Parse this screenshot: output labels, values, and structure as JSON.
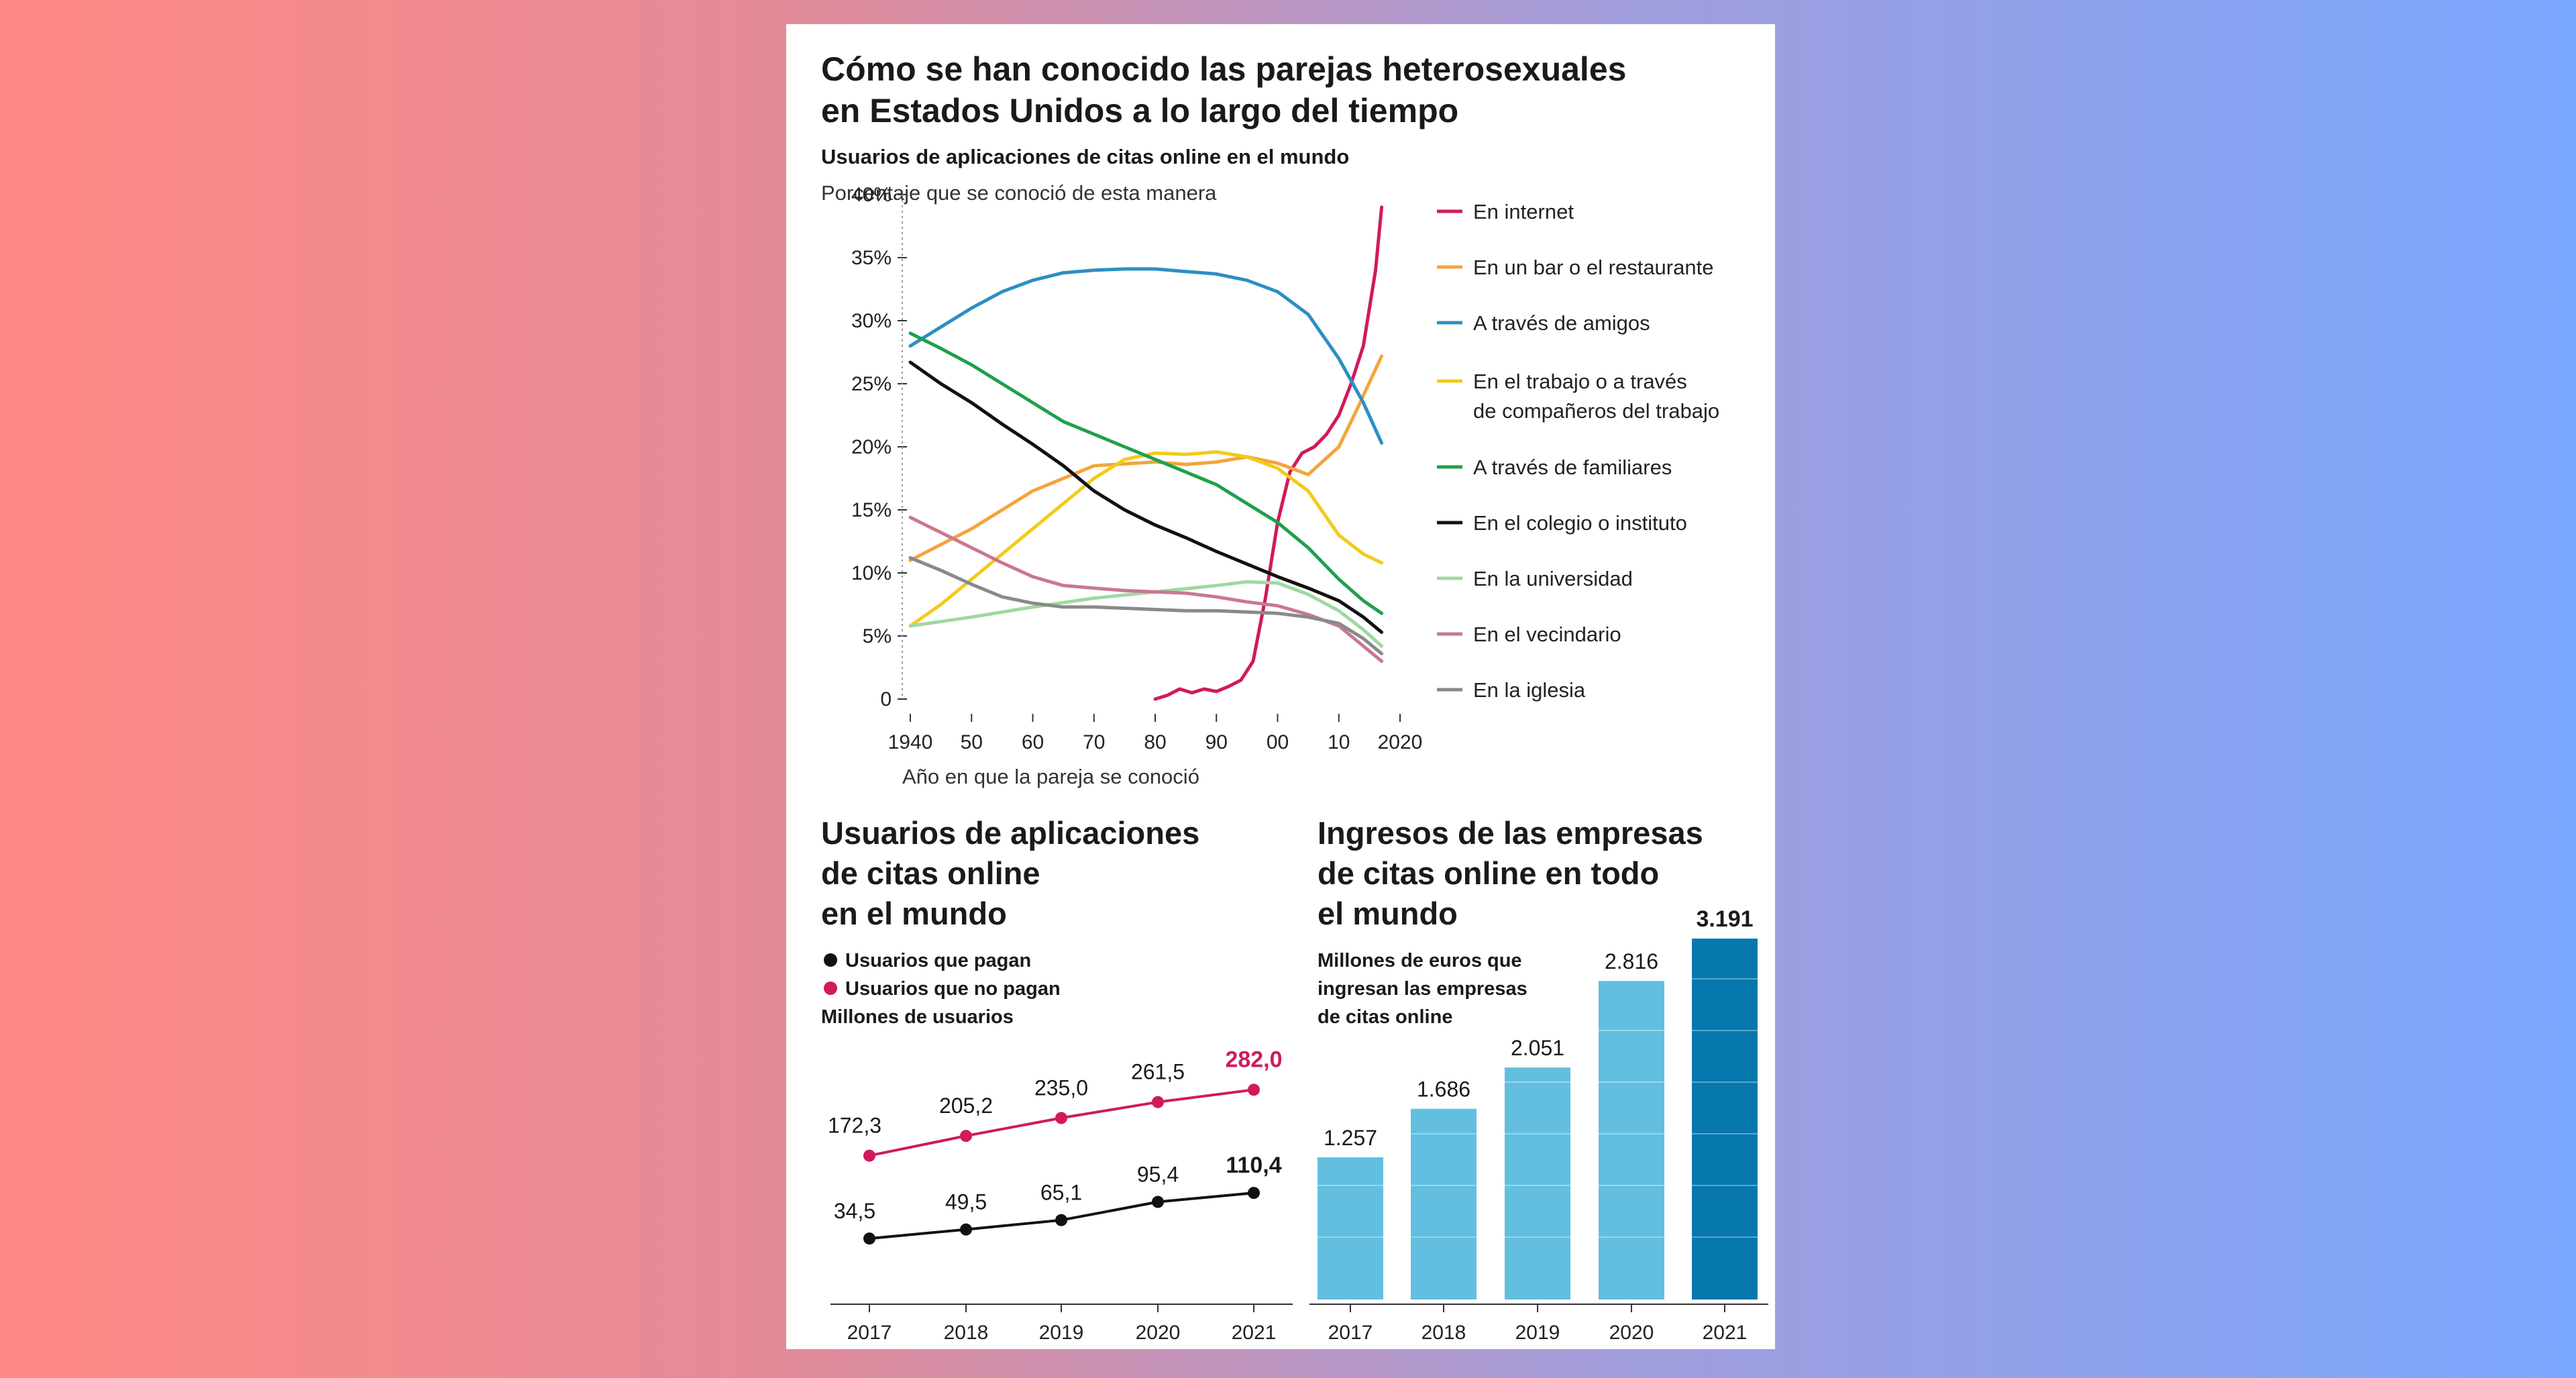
{
  "header": {
    "title_line1": "Cómo se han conocido las parejas heterosexuales",
    "title_line2": "en Estados Unidos a lo largo del tiempo",
    "subtitle_bold": "Usuarios de aplicaciones de citas online en el mundo",
    "subtitle_reg": "Porcentaje que se conoció de esta manera"
  },
  "chart_data": [
    {
      "type": "line",
      "ylabel": "Porcentaje que se conoció de esta manera",
      "xlabel": "Año en que la pareja se conoció",
      "xlim": [
        1940,
        2017
      ],
      "ylim": [
        0,
        40
      ],
      "y_ticks": [
        {
          "v": 40,
          "label": "40%"
        },
        {
          "v": 35,
          "label": "35%"
        },
        {
          "v": 30,
          "label": "30%"
        },
        {
          "v": 25,
          "label": "25%"
        },
        {
          "v": 20,
          "label": "20%"
        },
        {
          "v": 15,
          "label": "15%"
        },
        {
          "v": 10,
          "label": "10%"
        },
        {
          "v": 5,
          "label": "5%"
        },
        {
          "v": 0,
          "label": "0"
        }
      ],
      "x_ticks": [
        {
          "v": 1940,
          "label": "1940"
        },
        {
          "v": 1950,
          "label": "50"
        },
        {
          "v": 1960,
          "label": "60"
        },
        {
          "v": 1970,
          "label": "70"
        },
        {
          "v": 1980,
          "label": "80"
        },
        {
          "v": 1990,
          "label": "90"
        },
        {
          "v": 2000,
          "label": "00"
        },
        {
          "v": 2010,
          "label": "10"
        },
        {
          "v": 2020,
          "label": "2020"
        }
      ],
      "series": [
        {
          "name": "En internet",
          "color": "#d01a5e",
          "points": [
            [
              1980,
              0
            ],
            [
              1982,
              0.3
            ],
            [
              1984,
              0.8
            ],
            [
              1986,
              0.5
            ],
            [
              1988,
              0.8
            ],
            [
              1990,
              0.6
            ],
            [
              1992,
              1.0
            ],
            [
              1994,
              1.5
            ],
            [
              1996,
              3
            ],
            [
              1998,
              8
            ],
            [
              2000,
              14
            ],
            [
              2002,
              18
            ],
            [
              2004,
              19.5
            ],
            [
              2006,
              20
            ],
            [
              2008,
              21
            ],
            [
              2010,
              22.5
            ],
            [
              2012,
              25
            ],
            [
              2014,
              28
            ],
            [
              2016,
              34
            ],
            [
              2017,
              39
            ]
          ]
        },
        {
          "name": "En un bar o el restaurante",
          "color": "#f4a43c",
          "points": [
            [
              1940,
              11
            ],
            [
              1950,
              13.5
            ],
            [
              1960,
              16.5
            ],
            [
              1970,
              18.5
            ],
            [
              1980,
              18.8
            ],
            [
              1985,
              18.6
            ],
            [
              1990,
              18.8
            ],
            [
              1995,
              19.2
            ],
            [
              2000,
              18.7
            ],
            [
              2005,
              17.8
            ],
            [
              2010,
              20
            ],
            [
              2013,
              23
            ],
            [
              2017,
              27.2
            ]
          ]
        },
        {
          "name": "A través de amigos",
          "color": "#2b8fc3",
          "points": [
            [
              1940,
              28
            ],
            [
              1945,
              29.5
            ],
            [
              1950,
              31
            ],
            [
              1955,
              32.3
            ],
            [
              1960,
              33.2
            ],
            [
              1965,
              33.8
            ],
            [
              1970,
              34
            ],
            [
              1975,
              34.1
            ],
            [
              1980,
              34.1
            ],
            [
              1985,
              33.9
            ],
            [
              1990,
              33.7
            ],
            [
              1995,
              33.2
            ],
            [
              2000,
              32.3
            ],
            [
              2005,
              30.5
            ],
            [
              2010,
              27
            ],
            [
              2014,
              23.5
            ],
            [
              2017,
              20.3
            ]
          ]
        },
        {
          "name": "En el trabajo o a través\nde compañeros del trabajo",
          "color": "#f2cb1a",
          "points": [
            [
              1940,
              5.8
            ],
            [
              1945,
              7.5
            ],
            [
              1950,
              9.5
            ],
            [
              1955,
              11.5
            ],
            [
              1960,
              13.5
            ],
            [
              1965,
              15.5
            ],
            [
              1970,
              17.5
            ],
            [
              1975,
              19
            ],
            [
              1980,
              19.5
            ],
            [
              1985,
              19.4
            ],
            [
              1990,
              19.6
            ],
            [
              1995,
              19.2
            ],
            [
              2000,
              18.3
            ],
            [
              2005,
              16.5
            ],
            [
              2010,
              13
            ],
            [
              2014,
              11.5
            ],
            [
              2017,
              10.8
            ]
          ]
        },
        {
          "name": "A través de familiares",
          "color": "#20a04b",
          "points": [
            [
              1940,
              29
            ],
            [
              1945,
              27.8
            ],
            [
              1950,
              26.5
            ],
            [
              1955,
              25
            ],
            [
              1960,
              23.5
            ],
            [
              1965,
              22
            ],
            [
              1970,
              21
            ],
            [
              1975,
              20
            ],
            [
              1980,
              19
            ],
            [
              1985,
              18
            ],
            [
              1990,
              17
            ],
            [
              1995,
              15.5
            ],
            [
              2000,
              14
            ],
            [
              2005,
              12
            ],
            [
              2010,
              9.5
            ],
            [
              2014,
              7.8
            ],
            [
              2017,
              6.8
            ]
          ]
        },
        {
          "name": "En el colegio o instituto",
          "color": "#111111",
          "points": [
            [
              1940,
              26.7
            ],
            [
              1945,
              25
            ],
            [
              1950,
              23.5
            ],
            [
              1955,
              21.8
            ],
            [
              1960,
              20.2
            ],
            [
              1965,
              18.5
            ],
            [
              1970,
              16.5
            ],
            [
              1975,
              15
            ],
            [
              1980,
              13.8
            ],
            [
              1985,
              12.8
            ],
            [
              1990,
              11.7
            ],
            [
              1995,
              10.7
            ],
            [
              2000,
              9.7
            ],
            [
              2005,
              8.8
            ],
            [
              2010,
              7.8
            ],
            [
              2014,
              6.5
            ],
            [
              2017,
              5.3
            ]
          ]
        },
        {
          "name": "En la universidad",
          "color": "#9ed8a2",
          "points": [
            [
              1940,
              5.8
            ],
            [
              1950,
              6.5
            ],
            [
              1960,
              7.3
            ],
            [
              1970,
              8
            ],
            [
              1980,
              8.5
            ],
            [
              1990,
              9
            ],
            [
              1995,
              9.3
            ],
            [
              2000,
              9.2
            ],
            [
              2005,
              8.3
            ],
            [
              2010,
              7
            ],
            [
              2014,
              5.5
            ],
            [
              2017,
              4.2
            ]
          ]
        },
        {
          "name": "En el vecindario",
          "color": "#c9788f",
          "points": [
            [
              1940,
              14.4
            ],
            [
              1945,
              13.2
            ],
            [
              1950,
              12
            ],
            [
              1955,
              10.8
            ],
            [
              1960,
              9.7
            ],
            [
              1965,
              9
            ],
            [
              1970,
              8.8
            ],
            [
              1975,
              8.6
            ],
            [
              1980,
              8.5
            ],
            [
              1985,
              8.4
            ],
            [
              1990,
              8.1
            ],
            [
              1995,
              7.7
            ],
            [
              2000,
              7.4
            ],
            [
              2005,
              6.7
            ],
            [
              2010,
              5.8
            ],
            [
              2014,
              4.2
            ],
            [
              2017,
              3.0
            ]
          ]
        },
        {
          "name": "En la iglesia",
          "color": "#8a8a8a",
          "points": [
            [
              1940,
              11.2
            ],
            [
              1945,
              10.2
            ],
            [
              1950,
              9.1
            ],
            [
              1955,
              8.1
            ],
            [
              1960,
              7.6
            ],
            [
              1965,
              7.3
            ],
            [
              1970,
              7.3
            ],
            [
              1975,
              7.2
            ],
            [
              1980,
              7.1
            ],
            [
              1985,
              7
            ],
            [
              1990,
              7
            ],
            [
              1995,
              6.9
            ],
            [
              2000,
              6.8
            ],
            [
              2005,
              6.5
            ],
            [
              2010,
              6
            ],
            [
              2014,
              4.8
            ],
            [
              2017,
              3.6
            ]
          ]
        }
      ]
    },
    {
      "type": "line",
      "title": "Usuarios de aplicaciones\nde citas online\nen el mundo",
      "ylabel": "Millones de usuarios",
      "categories": [
        "2017",
        "2018",
        "2019",
        "2020",
        "2021"
      ],
      "ylim": [
        0,
        300
      ],
      "series": [
        {
          "name": "Usuarios que pagan",
          "color": "#111111",
          "values": [
            34.5,
            49.5,
            65.1,
            95.4,
            110.4
          ],
          "labels": [
            "34,5",
            "49,5",
            "65,1",
            "95,4",
            "110,4"
          ]
        },
        {
          "name": "Usuarios que no pagan",
          "color": "#d01a5e",
          "values": [
            172.3,
            205.2,
            235.0,
            261.5,
            282.0
          ],
          "labels": [
            "172,3",
            "205,2",
            "235,0",
            "261,5",
            "282,0"
          ]
        }
      ]
    },
    {
      "type": "bar",
      "title": "Ingresos de las empresas\nde citas online en todo\nel mundo",
      "ylabel": "Millones de euros que\ningresan las empresas\nde citas online",
      "categories": [
        "2017",
        "2018",
        "2019",
        "2020",
        "2021"
      ],
      "values": [
        1257,
        1686,
        2051,
        2816,
        3191
      ],
      "labels": [
        "1.257",
        "1.686",
        "2.051",
        "2.816",
        "3.191"
      ],
      "ylim": [
        0,
        3191
      ],
      "colors": {
        "bar": "#62bfe0",
        "highlight": "#0678ad"
      }
    }
  ]
}
